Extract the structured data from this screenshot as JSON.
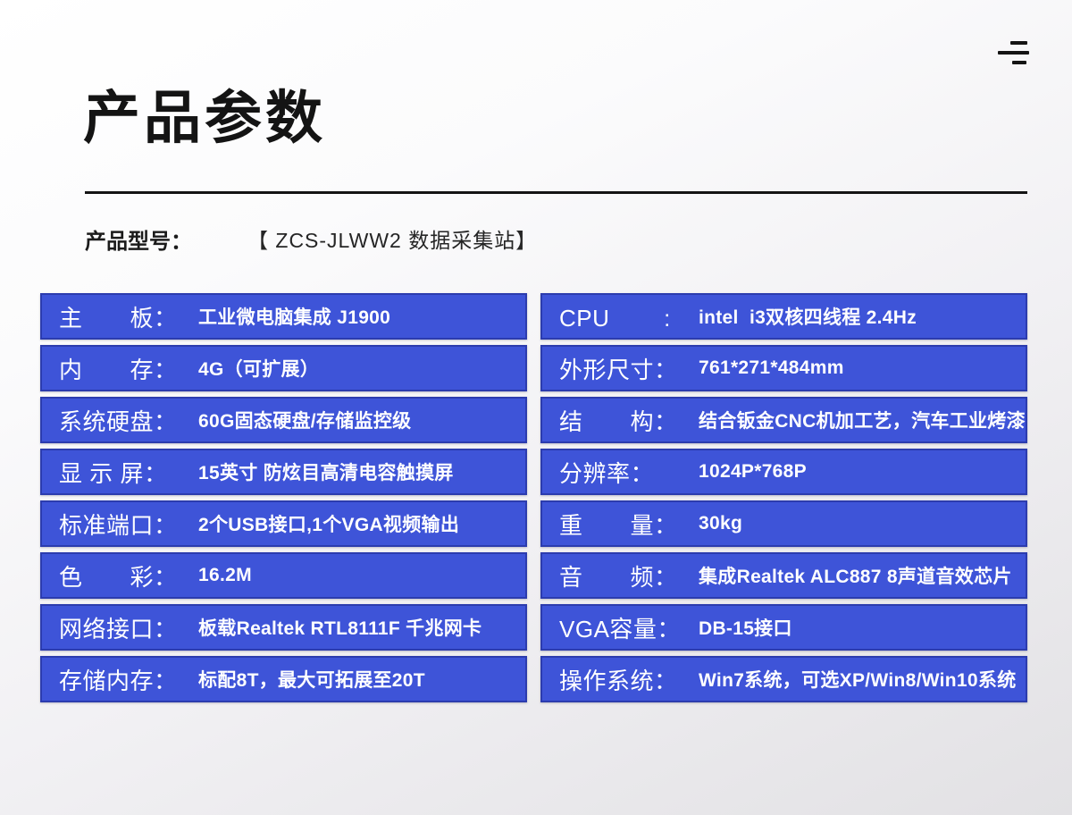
{
  "page": {
    "title": "产品参数"
  },
  "header_icon": {
    "name": "menu-lines-icon"
  },
  "model": {
    "label": "产品型号：",
    "value": "【 ZCS-JLWW2 数据采集站】"
  },
  "colors": {
    "row_fill": "#3e54d8",
    "row_border": "#2c3cae",
    "title_text": "#141414",
    "row_text": "#ffffff"
  },
  "specs": {
    "left": [
      {
        "label": "主　　板：",
        "value": "工业微电脑集成 J1900"
      },
      {
        "label": "内　　存：",
        "value": "4G（可扩展）"
      },
      {
        "label": "系统硬盘：",
        "value": "60G固态硬盘/存储监控级"
      },
      {
        "label": "显 示 屏：",
        "value": "15英寸 防炫目高清电容触摸屏"
      },
      {
        "label": "标准端口：",
        "value": "2个USB接口,1个VGA视频输出"
      },
      {
        "label": "色　　彩：",
        "value": "16.2M"
      },
      {
        "label": "网络接口：",
        "value": "板载Realtek RTL8111F 千兆网卡"
      },
      {
        "label": "存储内存：",
        "value": "标配8T，最大可拓展至20T"
      }
    ],
    "right": [
      {
        "label": "CPU　　 :",
        "value": "intel  i3双核四线程 2.4Hz"
      },
      {
        "label": "外形尺寸：",
        "value": "761*271*484mm"
      },
      {
        "label": "结　　构：",
        "value": "结合钣金CNC机加工艺，汽车工业烤漆"
      },
      {
        "label": "分辨率：",
        "value": "1024P*768P"
      },
      {
        "label": "重　　量：",
        "value": "30kg"
      },
      {
        "label": "音　　频：",
        "value": "集成Realtek ALC887 8声道音效芯片"
      },
      {
        "label": "VGA容量：",
        "value": "DB-15接口"
      },
      {
        "label": "操作系统：",
        "value": "Win7系统，可选XP/Win8/Win10系统"
      }
    ]
  }
}
